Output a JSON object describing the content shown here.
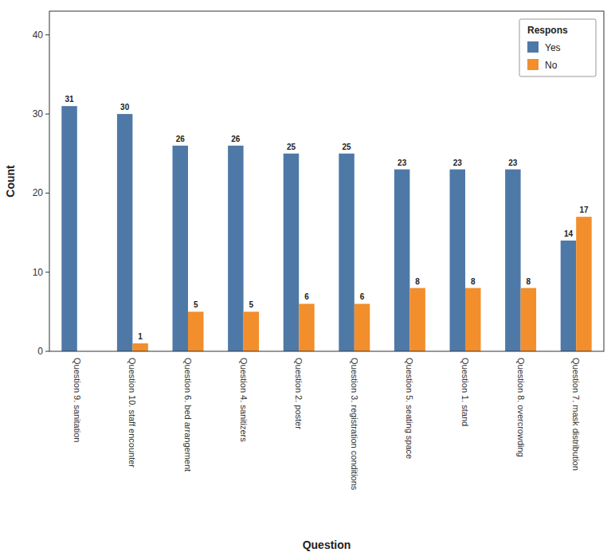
{
  "chart_data": {
    "type": "bar",
    "xlabel": "Question",
    "ylabel": "Count",
    "legend_title": "Respons",
    "categories": [
      "Question 9. sanitation",
      "Question 10. staff encounter",
      "Question 6. bed arrangement",
      "Question 4. sanitizers",
      "Question 2. poster",
      "Question 3. registration conditions",
      "Question 5. seating space",
      "Question 1. stand",
      "Question 8. overcrowding",
      "Question 7. mask distribution"
    ],
    "series": [
      {
        "name": "Yes",
        "values": [
          31,
          30,
          26,
          26,
          25,
          25,
          23,
          23,
          23,
          14
        ]
      },
      {
        "name": "No",
        "values": [
          0,
          1,
          5,
          5,
          6,
          6,
          8,
          8,
          8,
          17
        ]
      }
    ],
    "ylim": [
      0,
      43
    ],
    "yticks": [
      0,
      10,
      20,
      30,
      40
    ],
    "grid": false,
    "legend": "upper right",
    "data_labels": true
  }
}
